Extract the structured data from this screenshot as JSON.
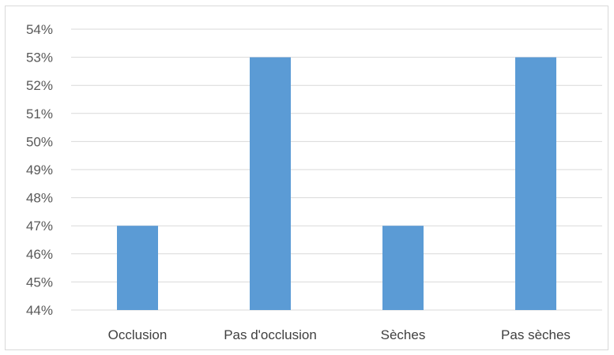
{
  "chart_data": {
    "type": "bar",
    "categories": [
      "Occlusion",
      "Pas d'occlusion",
      "Sèches",
      "Pas sèches"
    ],
    "values": [
      0.47,
      0.53,
      0.47,
      0.53
    ],
    "ylim": [
      0.44,
      0.54
    ],
    "ytick_labels": [
      "44%",
      "45%",
      "46%",
      "47%",
      "48%",
      "49%",
      "50%",
      "51%",
      "52%",
      "53%",
      "54%"
    ],
    "grid": true,
    "legend": "none",
    "bar_color": "#5b9bd5",
    "grid_color": "#d9d9d9"
  }
}
